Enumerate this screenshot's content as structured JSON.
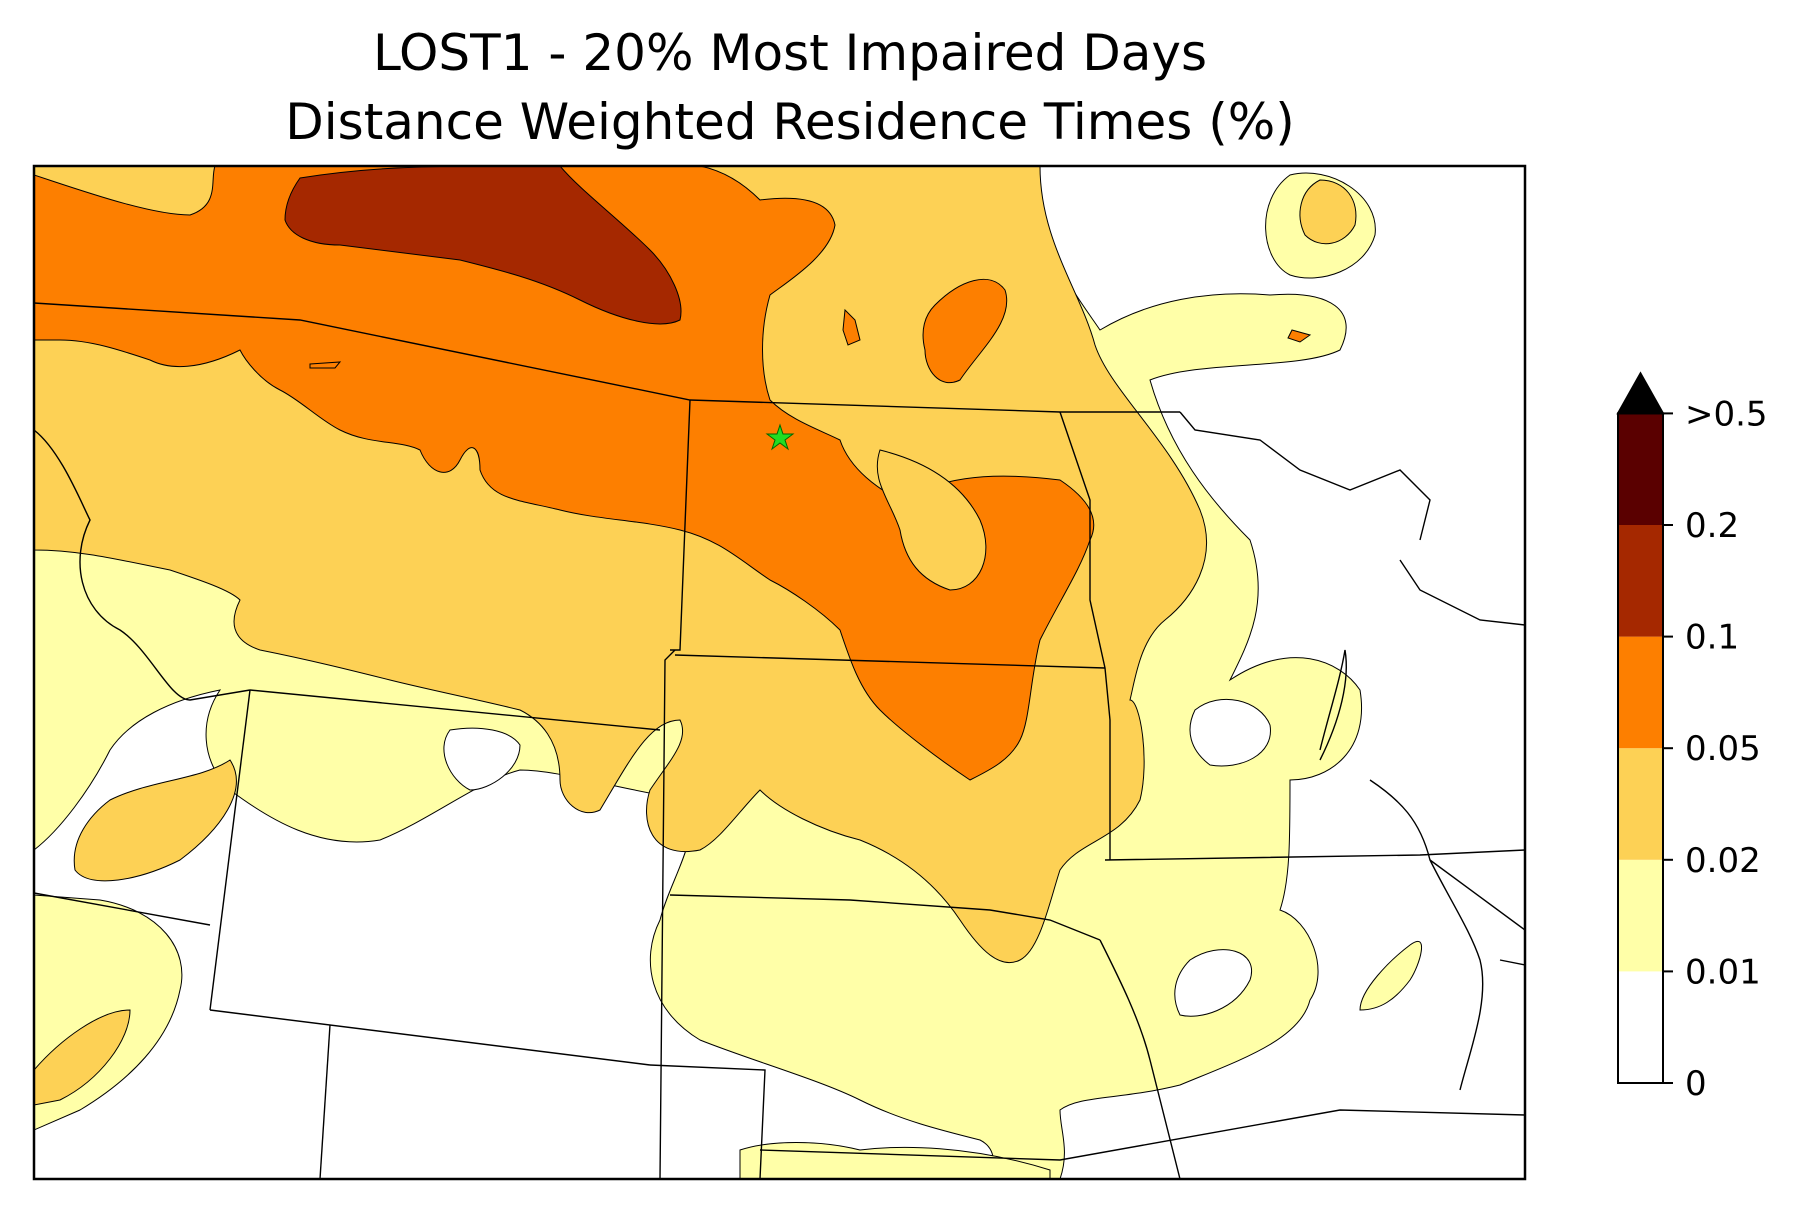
{
  "title_line1": "LOST1 - 20% Most Impaired Days",
  "title_line2": "Distance Weighted Residence Times (%)",
  "colorbar": {
    "levels": [
      {
        "label": "0",
        "color": "#ffffff"
      },
      {
        "label": "0.01",
        "color": "#ffffa8"
      },
      {
        "label": "0.02",
        "color": "#fdd155"
      },
      {
        "label": "0.05",
        "color": "#fd7f00"
      },
      {
        "label": "0.1",
        "color": "#a52800"
      },
      {
        "label": "0.2",
        "color": "#5a0000"
      },
      {
        "label": ">0.5",
        "color": "#000000"
      }
    ],
    "extend": "max"
  },
  "site_marker": {
    "name": "LOST1",
    "symbol": "star",
    "color": "#22dd22"
  }
}
